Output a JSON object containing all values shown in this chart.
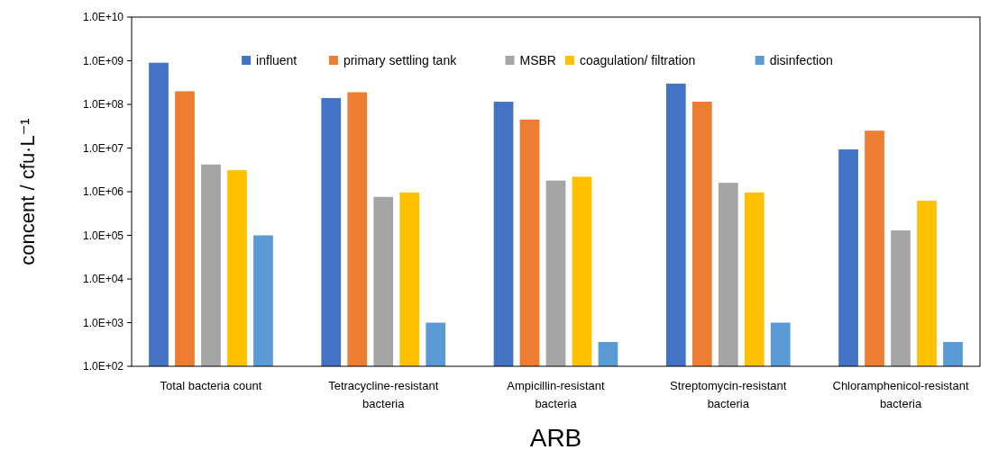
{
  "chart_data": {
    "type": "bar",
    "xlabel": "ARB",
    "ylabel": "concent / cfu·L⁻¹",
    "log": "y",
    "legend": "top",
    "grid": false,
    "categories": [
      "Total bacteria count",
      "Tetracycline-resistant bacteria",
      "Ampicillin-resistant bacteria",
      "Streptomycin-resistant bacteria",
      "Chloramphenicol-resistant bacteria"
    ],
    "ylim": [
      100,
      10000000000
    ],
    "yticks": [
      {
        "value": 100,
        "label": "1.0E+02"
      },
      {
        "value": 1000,
        "label": "1.0E+03"
      },
      {
        "value": 10000,
        "label": "1.0E+04"
      },
      {
        "value": 100000,
        "label": "1.0E+05"
      },
      {
        "value": 1000000,
        "label": "1.0E+06"
      },
      {
        "value": 10000000,
        "label": "1.0E+07"
      },
      {
        "value": 100000000,
        "label": "1.0E+08"
      },
      {
        "value": 1000000000,
        "label": "1.0E+09"
      },
      {
        "value": 10000000000,
        "label": "1.0E+10"
      }
    ],
    "series": [
      {
        "name": "influent",
        "color": "#4472c4",
        "values": [
          900000000,
          140000000,
          115000000,
          300000000,
          9300000
        ]
      },
      {
        "name": "primary settling tank",
        "color": "#ed7d31",
        "values": [
          200000000,
          190000000,
          45000000,
          115000000,
          25000000
        ]
      },
      {
        "name": "MSBR",
        "color": "#a5a5a5",
        "values": [
          4200000,
          760000,
          1800000,
          1600000,
          130000
        ]
      },
      {
        "name": "coagulation/ filtration",
        "color": "#ffc000",
        "values": [
          3100000,
          960000,
          2200000,
          960000,
          620000
        ]
      },
      {
        "name": "disinfection",
        "color": "#5b9bd5",
        "values": [
          100000,
          1000,
          360,
          1000,
          360
        ]
      }
    ]
  }
}
